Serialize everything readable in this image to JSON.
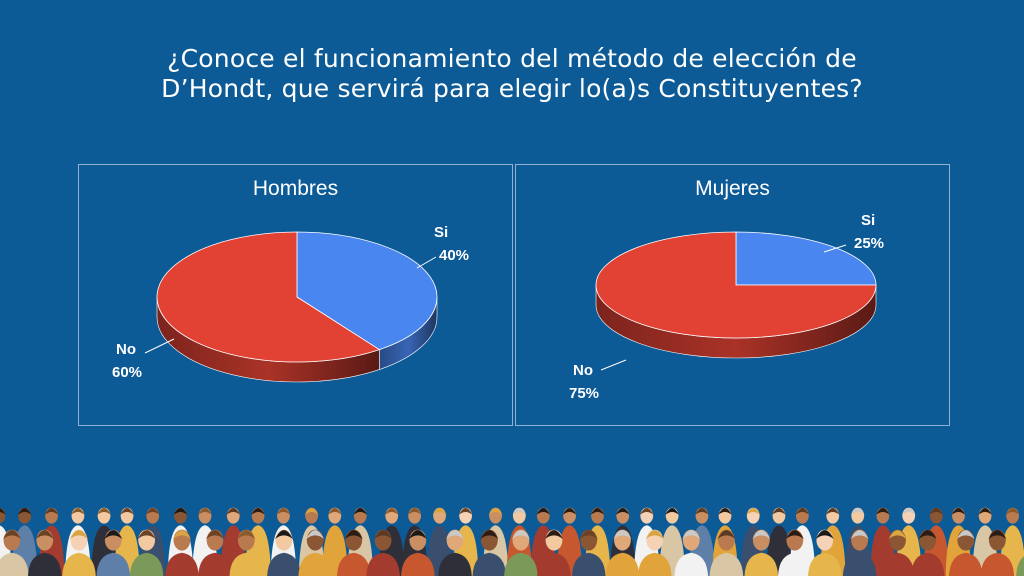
{
  "title": {
    "line1": "¿Conoce el funcionamiento del método de elección de",
    "line2": "D’Hondt, que servirá para elegir lo(a)s Constituyentes?"
  },
  "colors": {
    "background": "#0c5a96",
    "si": "#4a86f0",
    "no": "#e24234"
  },
  "chart_data": [
    {
      "type": "pie",
      "title": "Hombres",
      "categories": [
        "Si",
        "No"
      ],
      "values": [
        40,
        60
      ],
      "labels": [
        {
          "name": "Si",
          "value": "40%"
        },
        {
          "name": "No",
          "value": "60%"
        }
      ]
    },
    {
      "type": "pie",
      "title": "Mujeres",
      "categories": [
        "Si",
        "No"
      ],
      "values": [
        25,
        75
      ],
      "labels": [
        {
          "name": "Si",
          "value": "25%"
        },
        {
          "name": "No",
          "value": "75%"
        }
      ]
    }
  ]
}
